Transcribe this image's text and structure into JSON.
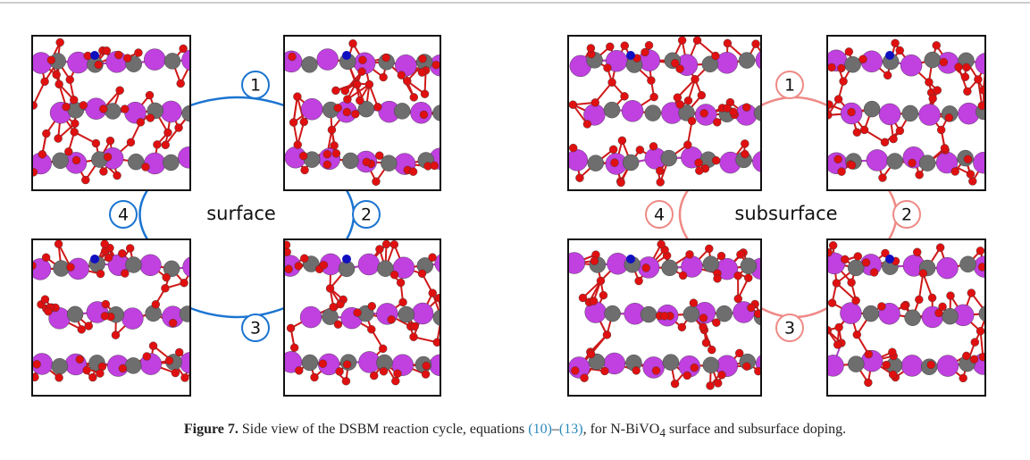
{
  "figure": {
    "panels": [
      {
        "label": "surface",
        "steps": [
          "1",
          "2",
          "3",
          "4"
        ]
      },
      {
        "label": "subsurface",
        "steps": [
          "1",
          "2",
          "3",
          "4"
        ]
      }
    ],
    "caption": {
      "label": "Figure 7.",
      "text_before": " Side view of the DSBM reaction cycle, equations ",
      "ref_start": "(10)",
      "dash": "–",
      "ref_end": "(13)",
      "text_mid": ", for N-BiVO",
      "subscript": "4",
      "text_after": " surface and subsurface doping."
    }
  }
}
